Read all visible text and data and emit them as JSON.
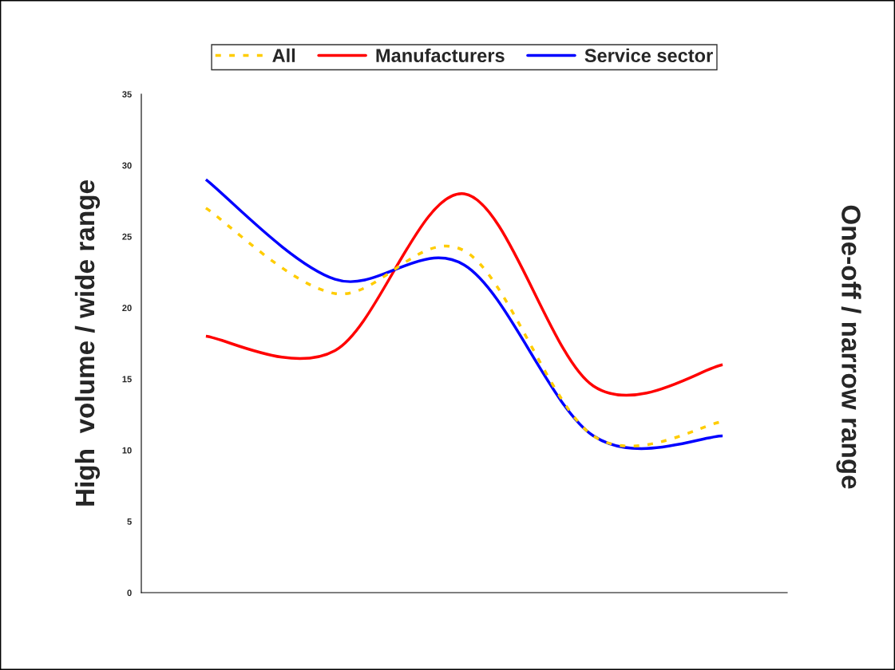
{
  "chart_data": {
    "type": "line",
    "ylabel": "High  volume / wide range",
    "annotations": [
      "One-off / narrow range"
    ],
    "categories": [
      null,
      null,
      null,
      null,
      null
    ],
    "series": [
      {
        "name": "All",
        "color": "#ffcc00",
        "line_style": "dashed",
        "values": [
          27,
          21,
          24,
          11,
          12
        ]
      },
      {
        "name": "Manufacturers",
        "color": "#ff0000",
        "line_style": "solid",
        "values": [
          18,
          17,
          28,
          14.5,
          16
        ]
      },
      {
        "name": "Service sector",
        "color": "#0000ff",
        "line_style": "solid",
        "values": [
          29,
          22,
          23,
          11,
          11
        ]
      }
    ],
    "ylim": [
      0,
      35
    ],
    "yticks": [
      0,
      5,
      10,
      15,
      20,
      25,
      30,
      35
    ],
    "tick_labels": "y",
    "grid": false,
    "legend": "top",
    "marker": "none"
  }
}
